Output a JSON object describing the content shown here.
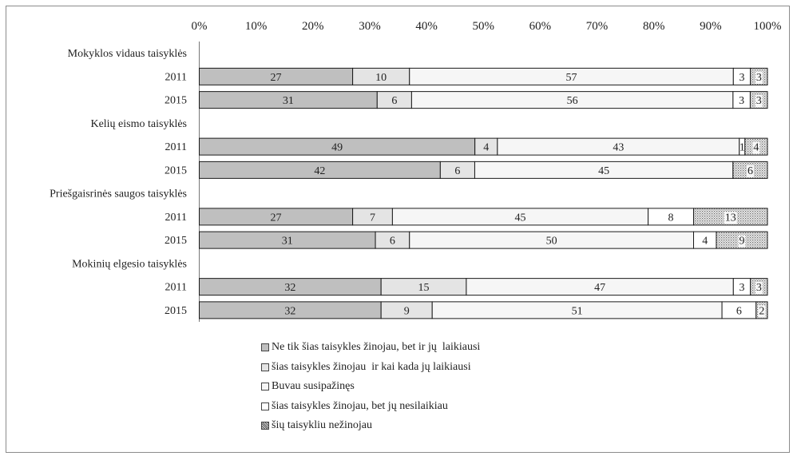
{
  "chart_data": {
    "type": "bar",
    "orientation": "horizontal",
    "stacked": "percent",
    "title": "",
    "xlabel": "",
    "ylabel": "",
    "xlim": [
      0,
      100
    ],
    "x_ticks": [
      "0%",
      "10%",
      "20%",
      "30%",
      "40%",
      "50%",
      "60%",
      "70%",
      "80%",
      "90%",
      "100%"
    ],
    "x_axis_position": "top",
    "grid": false,
    "legend_position": "bottom",
    "groups": [
      {
        "label": "Mokyklos vidaus taisyklės",
        "rows": [
          {
            "label": "2011",
            "values": [
              27,
              10,
              57,
              3,
              3
            ]
          },
          {
            "label": "2015",
            "values": [
              31,
              6,
              56,
              3,
              3
            ]
          }
        ]
      },
      {
        "label": "Kelių eismo taisyklės",
        "rows": [
          {
            "label": "2011",
            "values": [
              49,
              4,
              43,
              1,
              4
            ]
          },
          {
            "label": "2015",
            "values": [
              42,
              6,
              45,
              0,
              6
            ]
          }
        ]
      },
      {
        "label": "Priešgaisrinės saugos taisyklės",
        "rows": [
          {
            "label": "2011",
            "values": [
              27,
              7,
              45,
              8,
              13
            ]
          },
          {
            "label": "2015",
            "values": [
              31,
              6,
              50,
              4,
              9
            ]
          }
        ]
      },
      {
        "label": "Mokinių elgesio taisyklės",
        "rows": [
          {
            "label": "2011",
            "values": [
              32,
              15,
              47,
              3,
              3
            ]
          },
          {
            "label": "2015",
            "values": [
              32,
              9,
              51,
              6,
              2
            ]
          }
        ]
      }
    ],
    "series": [
      {
        "name": "Ne tik šias taisykles žinojau, bet ir jų  laikiausi",
        "fill": "#bfbfbf",
        "pattern": "solid"
      },
      {
        "name": "šias taisykles žinojau  ir kai kada jų laikiausi",
        "fill": "#e4e4e4",
        "pattern": "solid"
      },
      {
        "name": "Buvau susipažinęs",
        "fill": "#f6f6f6",
        "pattern": "solid"
      },
      {
        "name": "šias taisykles žinojau, bet jų nesilaikiau",
        "fill": "#ffffff",
        "pattern": "solid"
      },
      {
        "name": "šių taisykliu nežinojau",
        "fill": "#d9d9d9",
        "pattern": "dotted"
      }
    ]
  }
}
